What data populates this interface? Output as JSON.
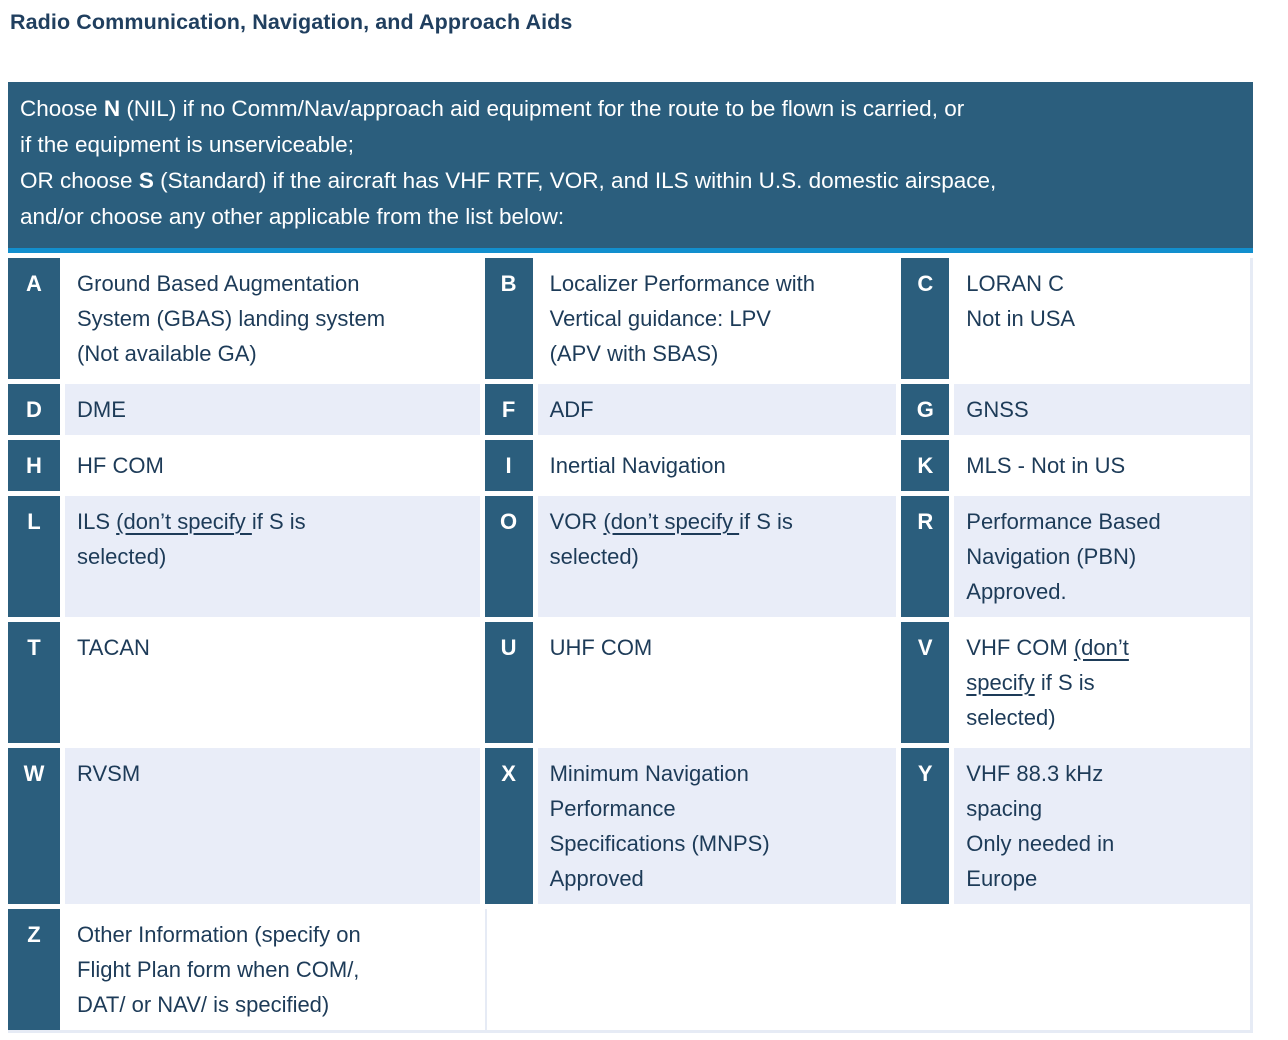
{
  "page_title": "Radio Communication, Navigation, and Approach Aids",
  "colors": {
    "header_teal": "#2b5e7d",
    "divider_blue": "#128fce",
    "shaded_row": "#e9edf8",
    "body_text": "#1d3b58",
    "title_text": "#203f5f",
    "table_border": "#e6ebf5"
  },
  "instructions": {
    "lines": [
      [
        {
          "t": "Choose "
        },
        {
          "t": "N",
          "b": true
        },
        {
          "t": " (NIL) if no Comm/Nav/approach aid equipment for the route to be flown is carried, or"
        }
      ],
      [
        {
          "t": "if the equipment is unserviceable;"
        }
      ],
      [
        {
          "t": "OR choose "
        },
        {
          "t": "S",
          "b": true
        },
        {
          "t": " (Standard) if the aircraft has VHF RTF, VOR, and ILS within U.S. domestic airspace,"
        }
      ],
      [
        {
          "t": "and/or choose any other applicable from the list below:"
        }
      ]
    ]
  },
  "table": {
    "rows": [
      {
        "shade": false,
        "cells": [
          {
            "letter": "A",
            "lines": [
              [
                {
                  "t": "Ground Based Augmentation"
                }
              ],
              [
                {
                  "t": "System (GBAS) landing system"
                }
              ],
              [
                {
                  "t": "(Not available GA)"
                }
              ]
            ]
          },
          {
            "letter": "B",
            "lines": [
              [
                {
                  "t": "Localizer Performance with"
                }
              ],
              [
                {
                  "t": "Vertical guidance: LPV"
                }
              ],
              [
                {
                  "t": "(APV with SBAS)"
                }
              ]
            ]
          },
          {
            "letter": "C",
            "lines": [
              [
                {
                  "t": "LORAN C"
                }
              ],
              [
                {
                  "t": "Not in USA"
                }
              ]
            ]
          }
        ]
      },
      {
        "shade": true,
        "cells": [
          {
            "letter": "D",
            "lines": [
              [
                {
                  "t": "DME"
                }
              ]
            ]
          },
          {
            "letter": "F",
            "lines": [
              [
                {
                  "t": "ADF"
                }
              ]
            ]
          },
          {
            "letter": "G",
            "lines": [
              [
                {
                  "t": "GNSS"
                }
              ]
            ]
          }
        ]
      },
      {
        "shade": false,
        "cells": [
          {
            "letter": "H",
            "lines": [
              [
                {
                  "t": "HF COM"
                }
              ]
            ]
          },
          {
            "letter": "I",
            "lines": [
              [
                {
                  "t": "Inertial Navigation"
                }
              ]
            ]
          },
          {
            "letter": "K",
            "lines": [
              [
                {
                  "t": "MLS - Not in US"
                }
              ]
            ]
          }
        ]
      },
      {
        "shade": true,
        "cells": [
          {
            "letter": "L",
            "lines": [
              [
                {
                  "t": "ILS "
                },
                {
                  "t": "(don’t specify ",
                  "u": true
                },
                {
                  "t": "if S is"
                }
              ],
              [
                {
                  "t": "selected)"
                }
              ]
            ]
          },
          {
            "letter": "O",
            "lines": [
              [
                {
                  "t": "VOR "
                },
                {
                  "t": "(don’t specify ",
                  "u": true
                },
                {
                  "t": "if S is"
                }
              ],
              [
                {
                  "t": "selected)"
                }
              ]
            ]
          },
          {
            "letter": "R",
            "lines": [
              [
                {
                  "t": "Performance Based"
                }
              ],
              [
                {
                  "t": "Navigation (PBN)"
                }
              ],
              [
                {
                  "t": "Approved."
                }
              ]
            ]
          }
        ]
      },
      {
        "shade": false,
        "cells": [
          {
            "letter": "T",
            "lines": [
              [
                {
                  "t": "TACAN"
                }
              ]
            ]
          },
          {
            "letter": "U",
            "lines": [
              [
                {
                  "t": "UHF COM"
                }
              ]
            ]
          },
          {
            "letter": "V",
            "lines": [
              [
                {
                  "t": "VHF COM "
                },
                {
                  "t": "(don’t ",
                  "u": true
                }
              ],
              [
                {
                  "t": "specify",
                  "u": true
                },
                {
                  "t": " if S is"
                }
              ],
              [
                {
                  "t": "selected)"
                }
              ]
            ]
          }
        ]
      },
      {
        "shade": true,
        "cells": [
          {
            "letter": "W",
            "lines": [
              [
                {
                  "t": "RVSM"
                }
              ]
            ]
          },
          {
            "letter": "X",
            "lines": [
              [
                {
                  "t": "Minimum Navigation"
                }
              ],
              [
                {
                  "t": "Performance"
                }
              ],
              [
                {
                  "t": "Specifications (MNPS)"
                }
              ],
              [
                {
                  "t": "Approved"
                }
              ]
            ]
          },
          {
            "letter": "Y",
            "lines": [
              [
                {
                  "t": "VHF 88.3 kHz"
                }
              ],
              [
                {
                  "t": "spacing"
                }
              ],
              [
                {
                  "t": "Only needed in"
                }
              ],
              [
                {
                  "t": "Europe"
                }
              ]
            ]
          }
        ]
      },
      {
        "shade": false,
        "fill_empty": true,
        "cells": [
          {
            "letter": "Z",
            "lines": [
              [
                {
                  "t": "Other Information (specify on"
                }
              ],
              [
                {
                  "t": "Flight Plan form when COM/,"
                }
              ],
              [
                {
                  "t": "DAT/ or NAV/ is specified)"
                }
              ]
            ]
          }
        ]
      }
    ]
  }
}
